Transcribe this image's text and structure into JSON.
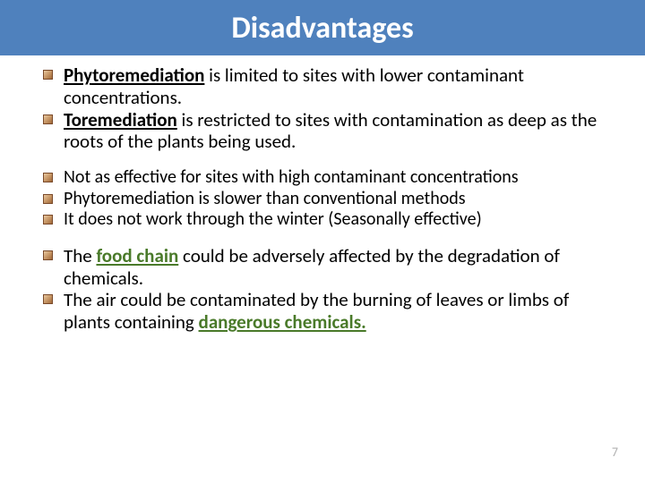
{
  "title_bar": {
    "background_color": "#4f81bd",
    "text_color": "#ffffff",
    "text": "Disadvantages"
  },
  "body_text": {
    "color": "#000000",
    "font_size_group1": 21,
    "font_size_group2": 20,
    "font_size_group3": 21
  },
  "accent_color": "#4a7a2a",
  "bullet": {
    "border_color": "#7a4a2a"
  },
  "group1": [
    {
      "pre": "",
      "bold_underline": "Phytoremediation",
      "post": " is limited to sites with lower contaminant concentrations."
    },
    {
      "pre": "",
      "bold_underline": "Toremediation",
      "post": " is restricted to sites with contamination as deep as the roots of the plants being used."
    }
  ],
  "group2": [
    {
      "text": "Not as effective for sites with high contaminant concentrations"
    },
    {
      "text": "Phytoremediation is slower than conventional methods"
    },
    {
      "text": "It does not work through the winter (Seasonally effective)"
    }
  ],
  "group3": [
    {
      "pre": "The ",
      "accent_bold_underline": "food chain",
      "post": " could be adversely affected by the degradation of chemicals."
    },
    {
      "pre": "The air could be contaminated by the burning of leaves or limbs of plants containing ",
      "accent_bold_underline": "dangerous chemicals.",
      "post": ""
    }
  ],
  "page_number": "7"
}
